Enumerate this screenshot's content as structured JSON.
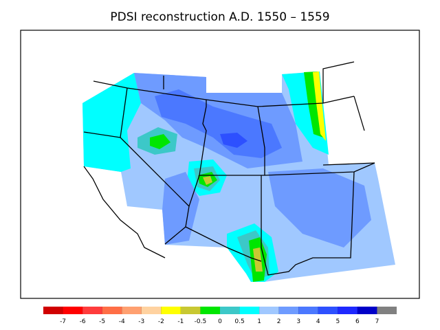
{
  "title": "PDSI reconstruction A.D. 1550 – 1559",
  "colorbar": {
    "colors": [
      "#d00000",
      "#ff0000",
      "#ff3c3c",
      "#ff6e46",
      "#ffa070",
      "#ffd2a0",
      "#ffff00",
      "#c8c832",
      "#00e600",
      "#3cc8c8",
      "#00ffff",
      "#a0c8ff",
      "#6e9bff",
      "#4b78ff",
      "#2d50ff",
      "#1e28ff",
      "#0000c8",
      "#808080"
    ],
    "labels": [
      -7,
      -6,
      -5,
      -4,
      -3,
      -2,
      -1,
      -0.5,
      0,
      0.5,
      1,
      2,
      3,
      4,
      5,
      6,
      7
    ]
  }
}
